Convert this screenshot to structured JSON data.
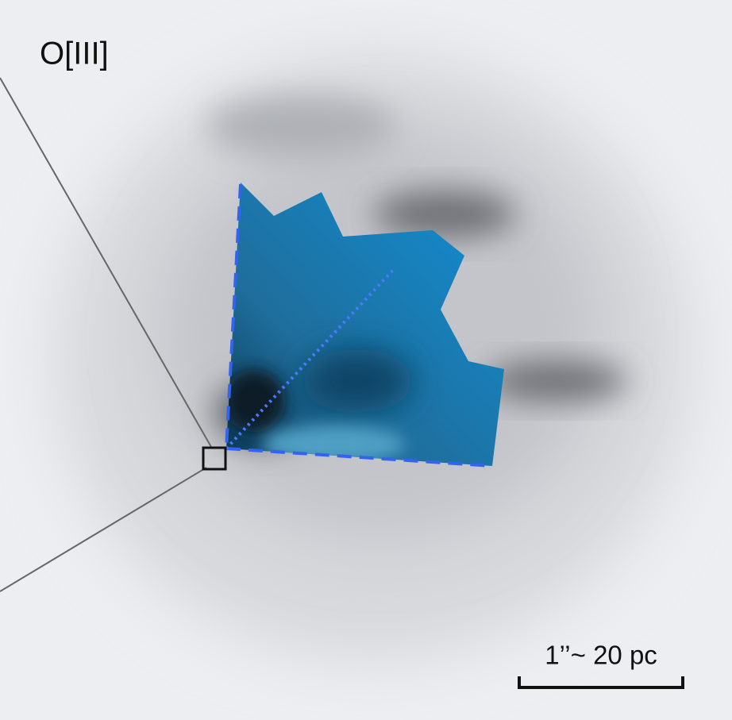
{
  "panel_label": "O[III]",
  "scale_bar": {
    "label": "1’’~ 20 pc"
  }
}
